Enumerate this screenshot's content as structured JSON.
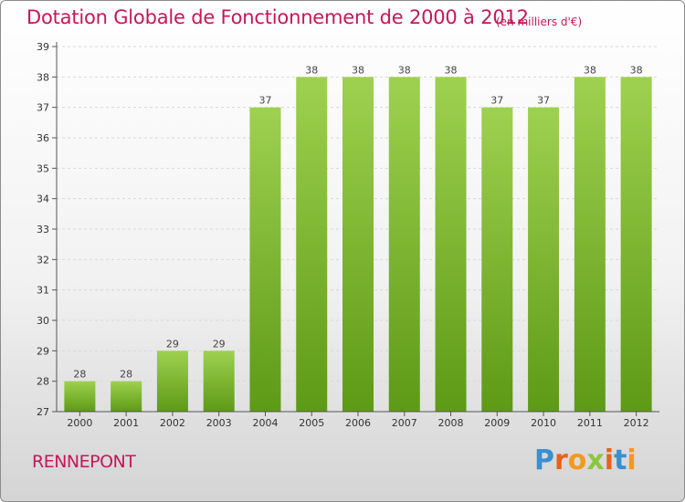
{
  "title": "Dotation Globale de Fonctionnement de 2000 à 2012",
  "unit_label": "(en milliers d'€)",
  "commune": "RENNEPONT",
  "logo": {
    "text": "Proxiti",
    "letter_colors": [
      "#3a8fd0",
      "#e8621c",
      "#f29a1a",
      "#8cc63f",
      "#e8621c",
      "#3a8fd0",
      "#f29a1a"
    ]
  },
  "colors": {
    "title": "#c8165a",
    "bar_light": "#9ed14f",
    "bar_dark": "#5d9a15",
    "grid": "#d8d8d8",
    "axis": "#555555"
  },
  "chart_data": {
    "type": "bar",
    "title": "Dotation Globale de Fonctionnement de 2000 à 2012",
    "xlabel": "",
    "ylabel": "",
    "categories": [
      "2000",
      "2001",
      "2002",
      "2003",
      "2004",
      "2005",
      "2006",
      "2007",
      "2008",
      "2009",
      "2010",
      "2011",
      "2012"
    ],
    "values": [
      28,
      28,
      29,
      29,
      37,
      38,
      38,
      38,
      38,
      37,
      37,
      38,
      38
    ],
    "data_labels": [
      "28",
      "28",
      "29",
      "29",
      "37",
      "38",
      "38",
      "38",
      "38",
      "37",
      "37",
      "38",
      "38"
    ],
    "ylim": [
      27,
      39
    ],
    "yticks": [
      "27",
      "28",
      "29",
      "30",
      "31",
      "32",
      "33",
      "34",
      "35",
      "36",
      "37",
      "38",
      "39"
    ],
    "grid": true,
    "legend": "none"
  }
}
